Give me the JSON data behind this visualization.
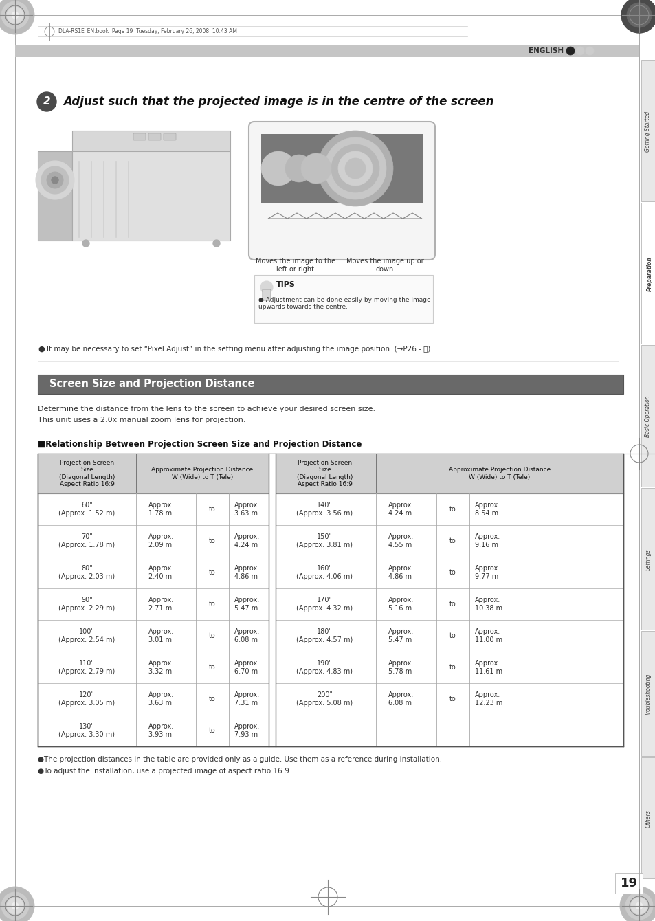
{
  "page_bg": "#ffffff",
  "header_bar_color": "#c0c0c0",
  "header_text": "ENGLISH",
  "side_tabs": [
    "Getting Started",
    "Preparation",
    "Basic Operation",
    "Settings",
    "Troubleshooting",
    "Others"
  ],
  "top_file_text": "DLA-RS1E_EN.book  Page 19  Tuesday, February 26, 2008  10:43 AM",
  "step_num": "2",
  "step_title": "Adjust such that the projected image is in the centre of the screen",
  "caption_left": "Moves the image to the\nleft or right",
  "caption_right": "Moves the image up or\ndown",
  "tips_title": "TIPS",
  "tips_bullet": "Adjustment can be done easily by moving the image\nupwards towards the centre.",
  "pixel_note": "It may be necessary to set “Pixel Adjust” in the setting menu after adjusting the image position. (→P26 - ⓙ)",
  "section_title": "Screen Size and Projection Distance",
  "section_bg": "#696969",
  "desc1": "Determine the distance from the lens to the screen to achieve your desired screen size.",
  "desc2": "This unit uses a 2.0x manual zoom lens for projection.",
  "table_label": "■Relationship Between Projection Screen Size and Projection Distance",
  "table_header_bg": "#d0d0d0",
  "table_rows": [
    [
      "60\"\n(Approx. 1.52 m)",
      "Approx.\n1.78 m",
      "to",
      "Approx.\n3.63 m",
      "140\"\n(Approx. 3.56 m)",
      "Approx.\n4.24 m",
      "to",
      "Approx.\n8.54 m"
    ],
    [
      "70\"\n(Approx. 1.78 m)",
      "Approx.\n2.09 m",
      "to",
      "Approx.\n4.24 m",
      "150\"\n(Approx. 3.81 m)",
      "Approx.\n4.55 m",
      "to",
      "Approx.\n9.16 m"
    ],
    [
      "80\"\n(Approx. 2.03 m)",
      "Approx.\n2.40 m",
      "to",
      "Approx.\n4.86 m",
      "160\"\n(Approx. 4.06 m)",
      "Approx.\n4.86 m",
      "to",
      "Approx.\n9.77 m"
    ],
    [
      "90\"\n(Approx. 2.29 m)",
      "Approx.\n2.71 m",
      "to",
      "Approx.\n5.47 m",
      "170\"\n(Approx. 4.32 m)",
      "Approx.\n5.16 m",
      "to",
      "Approx.\n10.38 m"
    ],
    [
      "100\"\n(Approx. 2.54 m)",
      "Approx.\n3.01 m",
      "to",
      "Approx.\n6.08 m",
      "180\"\n(Approx. 4.57 m)",
      "Approx.\n5.47 m",
      "to",
      "Approx.\n11.00 m"
    ],
    [
      "110\"\n(Approx. 2.79 m)",
      "Approx.\n3.32 m",
      "to",
      "Approx.\n6.70 m",
      "190\"\n(Approx. 4.83 m)",
      "Approx.\n5.78 m",
      "to",
      "Approx.\n11.61 m"
    ],
    [
      "120\"\n(Approx. 3.05 m)",
      "Approx.\n3.63 m",
      "to",
      "Approx.\n7.31 m",
      "200\"\n(Approx. 5.08 m)",
      "Approx.\n6.08 m",
      "to",
      "Approx.\n12.23 m"
    ],
    [
      "130\"\n(Approx. 3.30 m)",
      "Approx.\n3.93 m",
      "to",
      "Approx.\n7.93 m",
      "",
      "",
      "",
      ""
    ]
  ],
  "footer_notes": [
    "The projection distances in the table are provided only as a guide. Use them as a reference during installation.",
    "To adjust the installation, use a projected image of aspect ratio 16:9."
  ],
  "page_num": "19"
}
